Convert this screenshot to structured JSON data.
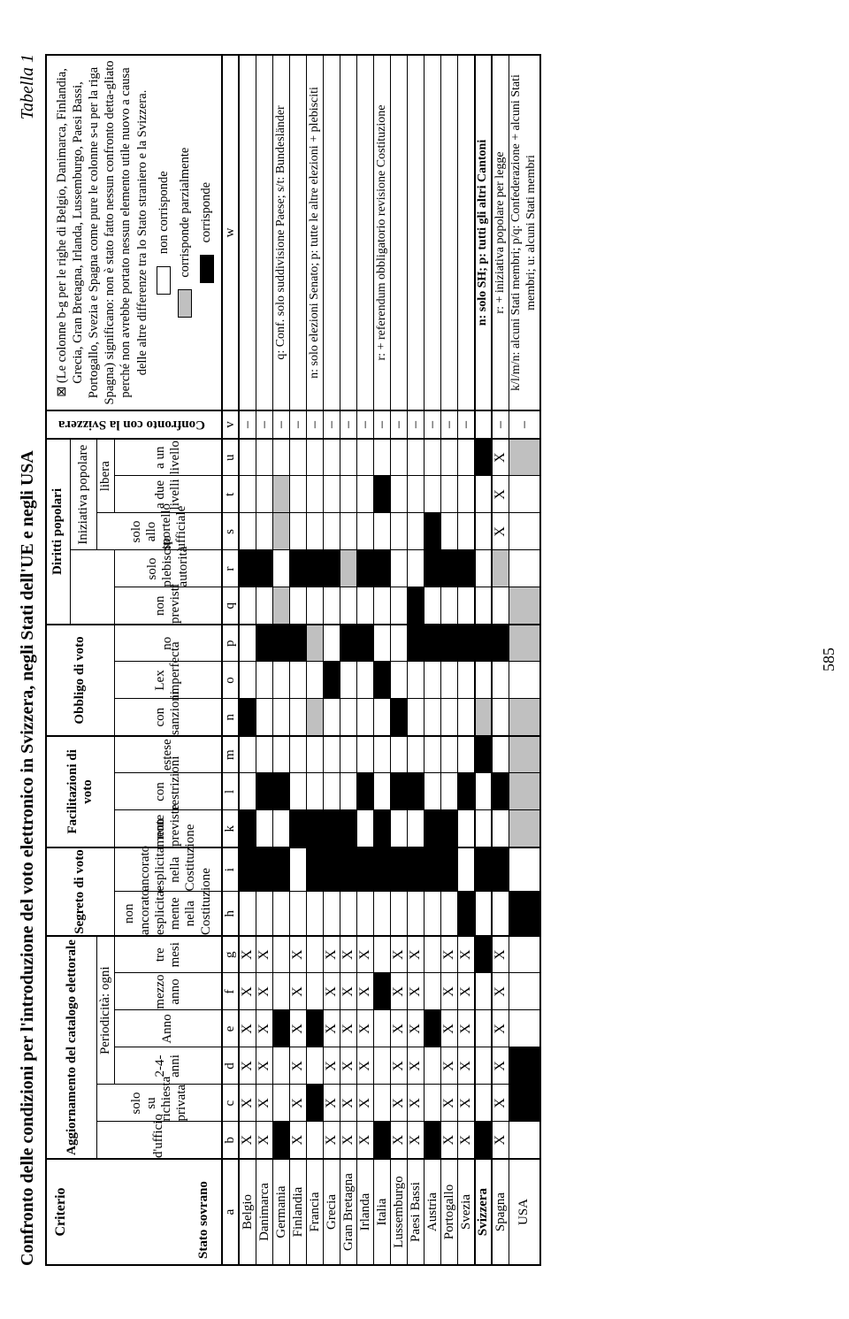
{
  "page_number": "585",
  "title_main": "Confronto delle condizioni per l'introduzione del voto elettronico in Svizzera, negli Stati dell'UE e negli USA",
  "title_right": "Tabella 1",
  "criterio_label": "Criterio",
  "stato_label": "Stato sovrano",
  "confronto_label": "Confronto con la Svizzera",
  "legend": {
    "intro": "⊠ (Le colonne b-g per le righe di Belgio, Danimarca, Finlandia, Grecia, Gran Bretagna, Irlanda, Lussemburgo, Paesi Bassi, Portogallo, Svezia e Spagna come pure le colonne s-u per la riga Spagna) significano: non è stato fatto nessun confronto detta-gliato perché non avrebbe portato nessun elemento utile nuovo a causa delle altre differenze tra lo Stato straniero e la Svizzera.",
    "white_label": "non corrisponde",
    "grey_label": "corrisponde parzialmente",
    "black_label": "corrisponde"
  },
  "groups": {
    "agg": "Aggiornamento del catalogo elettorale",
    "period": "Periodicità: ogni",
    "segreto": "Segreto di voto",
    "facil": "Facilitazioni di voto",
    "obbligo": "Obbligo di voto",
    "diritti": "Diritti popolari",
    "iniz": "Iniziativa popolare",
    "libera": "libera"
  },
  "cols": {
    "b": "d'ufficio",
    "c": "solo su richiesta privata",
    "d": "2-4- anni",
    "e": "Anno",
    "f": "mezzo anno",
    "g": "tre mesi",
    "h": "non ancorato esplicita-mente nella Costituzione",
    "i": "ancorato esplicitamente nella Costituzione",
    "k": "non previste",
    "l": "con restrizioni",
    "m": "estese",
    "n": "con sanzioni",
    "o": "Lex imperfecta",
    "p": "no",
    "q": "non previsti",
    "r": "solo plebiscito autorità",
    "s": "solo allo sportello ufficiale",
    "t": "a due livelli",
    "u": "a un livello"
  },
  "col_codes": [
    "a",
    "b",
    "c",
    "d",
    "e",
    "f",
    "g",
    "h",
    "i",
    "k",
    "l",
    "m",
    "n",
    "o",
    "p",
    "q",
    "r",
    "s",
    "t",
    "u",
    "v",
    "w"
  ],
  "notes": {
    "germania": "q: Conf. solo suddivisione Paese; s/t: Bundesländer",
    "francia": "n: solo elezioni Senato; p: tutte le altre elezioni + plebisciti",
    "italia": "r: + referendum obbligatorio revisione Costituzione",
    "svizzera": "n: solo SH; p: tutti gli altri Cantoni",
    "spagna": "r: + iniziativa popolare per legge",
    "usa": "k/l/m/n: alcuni Stati membri; p/q: Confederazione + alcuni Stati membri; u: alcuni Stati membri"
  },
  "countries": [
    {
      "name": "Belgio",
      "cells": {
        "b": "X",
        "c": "X",
        "d": "X",
        "e": "X",
        "f": "X",
        "g": "X",
        "h": "",
        "i": "B",
        "k": "B",
        "l": "",
        "m": "",
        "n": "B",
        "o": "",
        "p": "",
        "q": "",
        "r": "B",
        "s": "",
        "t": "",
        "u": ""
      },
      "v": "–",
      "w": ""
    },
    {
      "name": "Danimarca",
      "cells": {
        "b": "X",
        "c": "X",
        "d": "X",
        "e": "X",
        "f": "X",
        "g": "X",
        "h": "",
        "i": "B",
        "k": "",
        "l": "B",
        "m": "",
        "n": "",
        "o": "",
        "p": "B",
        "q": "",
        "r": "B",
        "s": "",
        "t": "",
        "u": ""
      },
      "v": "–",
      "w": ""
    },
    {
      "name": "Germania",
      "cells": {
        "b": "B",
        "c": "",
        "d": "",
        "e": "B",
        "f": "",
        "g": "",
        "h": "",
        "i": "B",
        "k": "",
        "l": "B",
        "m": "",
        "n": "",
        "o": "",
        "p": "B",
        "q": "G",
        "r": "",
        "s": "G",
        "t": "G",
        "u": ""
      },
      "v": "–",
      "w": "germania"
    },
    {
      "name": "Finlandia",
      "cells": {
        "b": "X",
        "c": "X",
        "d": "X",
        "e": "X",
        "f": "X",
        "g": "X",
        "h": "",
        "i": "",
        "k": "B",
        "l": "",
        "m": "",
        "n": "",
        "o": "",
        "p": "B",
        "q": "",
        "r": "B",
        "s": "",
        "t": "",
        "u": ""
      },
      "v": "–",
      "w": ""
    },
    {
      "name": "Francia",
      "cells": {
        "b": "",
        "c": "B",
        "d": "",
        "e": "B",
        "f": "",
        "g": "",
        "h": "",
        "i": "B",
        "k": "B",
        "l": "",
        "m": "",
        "n": "G",
        "o": "",
        "p": "G",
        "q": "",
        "r": "B",
        "s": "",
        "t": "",
        "u": ""
      },
      "v": "–",
      "w": "francia"
    },
    {
      "name": "Grecia",
      "cells": {
        "b": "X",
        "c": "X",
        "d": "X",
        "e": "X",
        "f": "X",
        "g": "X",
        "h": "",
        "i": "B",
        "k": "B",
        "l": "",
        "m": "",
        "n": "",
        "o": "B",
        "p": "",
        "q": "",
        "r": "B",
        "s": "",
        "t": "",
        "u": ""
      },
      "v": "–",
      "w": ""
    },
    {
      "name": "Gran Bretagna",
      "cells": {
        "b": "X",
        "c": "X",
        "d": "X",
        "e": "X",
        "f": "X",
        "g": "X",
        "h": "",
        "i": "B",
        "k": "B",
        "l": "",
        "m": "",
        "n": "",
        "o": "",
        "p": "B",
        "q": "",
        "r": "G",
        "s": "",
        "t": "",
        "u": ""
      },
      "v": "–",
      "w": ""
    },
    {
      "name": "Irlanda",
      "cells": {
        "b": "X",
        "c": "X",
        "d": "X",
        "e": "X",
        "f": "X",
        "g": "X",
        "h": "",
        "i": "B",
        "k": "",
        "l": "B",
        "m": "",
        "n": "",
        "o": "",
        "p": "B",
        "q": "",
        "r": "B",
        "s": "",
        "t": "",
        "u": ""
      },
      "v": "–",
      "w": ""
    },
    {
      "name": "Italia",
      "cells": {
        "b": "B",
        "c": "",
        "d": "",
        "e": "",
        "f": "B",
        "g": "",
        "h": "",
        "i": "B",
        "k": "B",
        "l": "",
        "m": "",
        "n": "",
        "o": "B",
        "p": "",
        "q": "",
        "r": "B",
        "s": "",
        "t": "B",
        "u": ""
      },
      "v": "–",
      "w": "italia"
    },
    {
      "name": "Lussemburgo",
      "cells": {
        "b": "X",
        "c": "X",
        "d": "X",
        "e": "X",
        "f": "X",
        "g": "X",
        "h": "",
        "i": "B",
        "k": "",
        "l": "B",
        "m": "",
        "n": "B",
        "o": "",
        "p": "",
        "q": "",
        "r": "",
        "s": "",
        "t": "",
        "u": ""
      },
      "v": "–",
      "w": ""
    },
    {
      "name": "Paesi Bassi",
      "cells": {
        "b": "X",
        "c": "X",
        "d": "X",
        "e": "X",
        "f": "X",
        "g": "X",
        "h": "",
        "i": "B",
        "k": "",
        "l": "B",
        "m": "",
        "n": "",
        "o": "",
        "p": "B",
        "q": "B",
        "r": "",
        "s": "",
        "t": "",
        "u": ""
      },
      "v": "–",
      "w": ""
    },
    {
      "name": "Austria",
      "cells": {
        "b": "B",
        "c": "",
        "d": "",
        "e": "B",
        "f": "",
        "g": "",
        "h": "",
        "i": "B",
        "k": "B",
        "l": "",
        "m": "",
        "n": "",
        "o": "",
        "p": "B",
        "q": "",
        "r": "B",
        "s": "B",
        "t": "",
        "u": ""
      },
      "v": "–",
      "w": ""
    },
    {
      "name": "Portogallo",
      "cells": {
        "b": "X",
        "c": "X",
        "d": "X",
        "e": "X",
        "f": "X",
        "g": "X",
        "h": "",
        "i": "B",
        "k": "B",
        "l": "",
        "m": "",
        "n": "",
        "o": "",
        "p": "B",
        "q": "",
        "r": "B",
        "s": "",
        "t": "",
        "u": ""
      },
      "v": "–",
      "w": ""
    },
    {
      "name": "Svezia",
      "cells": {
        "b": "X",
        "c": "X",
        "d": "X",
        "e": "X",
        "f": "X",
        "g": "X",
        "h": "B",
        "i": "",
        "k": "",
        "l": "B",
        "m": "",
        "n": "",
        "o": "",
        "p": "B",
        "q": "",
        "r": "B",
        "s": "",
        "t": "",
        "u": ""
      },
      "v": "–",
      "w": ""
    },
    {
      "name": "Svizzera",
      "bold": true,
      "cells": {
        "b": "B",
        "c": "",
        "d": "",
        "e": "",
        "f": "",
        "g": "B",
        "h": "",
        "i": "B",
        "k": "",
        "l": "",
        "m": "B",
        "n": "G",
        "o": "",
        "p": "B",
        "q": "",
        "r": "",
        "s": "",
        "t": "",
        "u": "B"
      },
      "v": "",
      "w": "svizzera"
    },
    {
      "name": "Spagna",
      "cells": {
        "b": "X",
        "c": "X",
        "d": "X",
        "e": "X",
        "f": "X",
        "g": "X",
        "h": "",
        "i": "B",
        "k": "",
        "l": "B",
        "m": "",
        "n": "",
        "o": "",
        "p": "B",
        "q": "",
        "r": "G",
        "s": "X",
        "t": "X",
        "u": "X"
      },
      "v": "–",
      "w": "spagna"
    },
    {
      "name": "USA",
      "cells": {
        "b": "",
        "c": "B",
        "d": "B",
        "e": "",
        "f": "",
        "g": "",
        "h": "B",
        "i": "",
        "k": "G",
        "l": "G",
        "m": "G",
        "n": "G",
        "o": "",
        "p": "G",
        "q": "G",
        "r": "",
        "s": "",
        "t": "",
        "u": "G"
      },
      "v": "–",
      "w": "usa"
    }
  ],
  "colors": {
    "black": "#000000",
    "grey": "#c0c0c0",
    "white": "#ffffff"
  }
}
